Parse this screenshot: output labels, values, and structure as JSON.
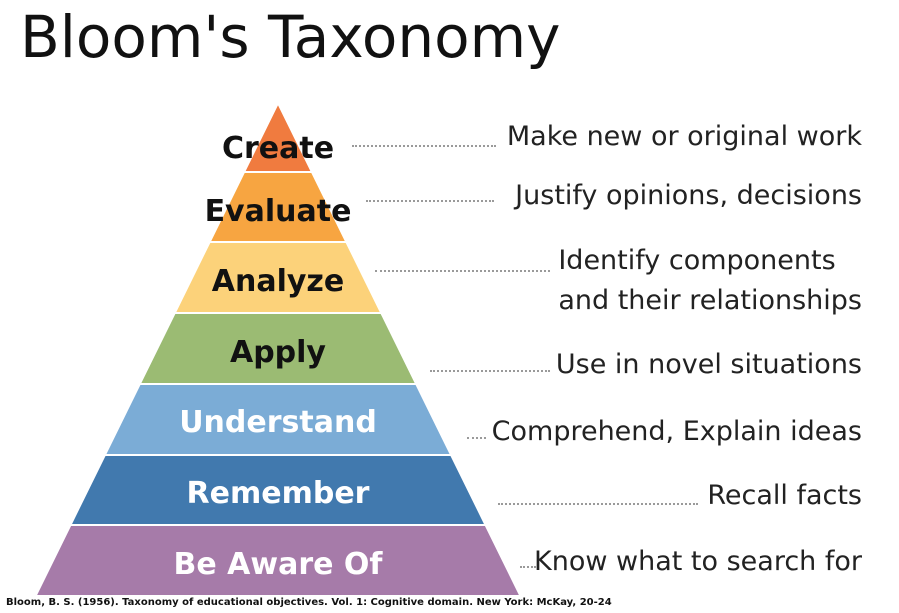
{
  "title": "Bloom's Taxonomy",
  "levels": [
    {
      "label": "Create",
      "description": [
        "Make new or original work"
      ],
      "color": "#F07B3F",
      "text_color": "#111111"
    },
    {
      "label": "Evaluate",
      "description": [
        "Justify opinions, decisions"
      ],
      "color": "#F7A541",
      "text_color": "#111111"
    },
    {
      "label": "Analyze",
      "description": [
        "Identify components",
        "and their relationships"
      ],
      "color": "#FCD27A",
      "text_color": "#111111"
    },
    {
      "label": "Apply",
      "description": [
        "Use in novel situations"
      ],
      "color": "#9BBB73",
      "text_color": "#111111"
    },
    {
      "label": "Understand",
      "description": [
        "Comprehend, Explain ideas"
      ],
      "color": "#7BACD6",
      "text_color": "#ffffff"
    },
    {
      "label": "Remember",
      "description": [
        "Recall facts"
      ],
      "color": "#4179AE",
      "text_color": "#ffffff"
    },
    {
      "label": "Be Aware Of",
      "description": [
        "Know what to search for"
      ],
      "color": "#A67BA9",
      "text_color": "#ffffff"
    }
  ],
  "citation": "Bloom, B. S. (1956). Taxonomy of educational objectives. Vol. 1: Cognitive domain. New York: McKay, 20-24"
}
